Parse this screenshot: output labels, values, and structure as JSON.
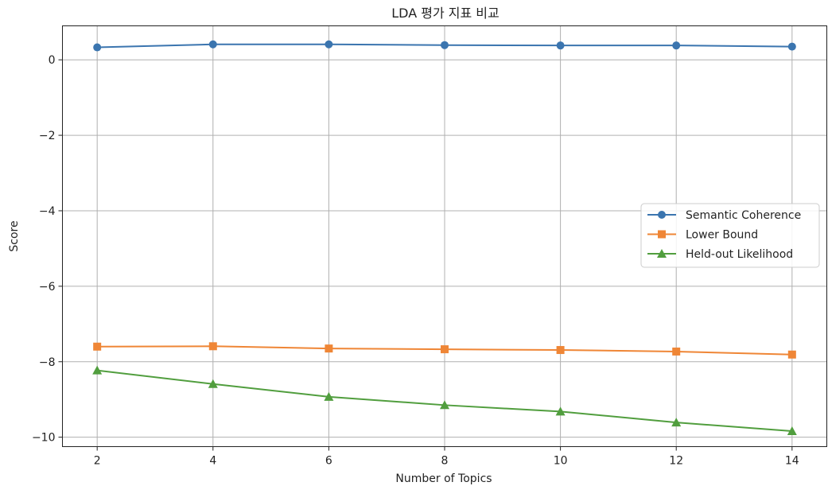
{
  "chart_data": {
    "type": "line",
    "title": "LDA 평가 지표 비교",
    "xlabel": "Number of Topics",
    "ylabel": "Score",
    "x": [
      2,
      4,
      6,
      8,
      10,
      12,
      14
    ],
    "xticks": [
      2,
      4,
      6,
      8,
      10,
      12,
      14
    ],
    "yticks": [
      0,
      -2,
      -4,
      -6,
      -8,
      -10
    ],
    "xlim": [
      1.4,
      14.6
    ],
    "ylim": [
      -10.25,
      0.9
    ],
    "grid": true,
    "legend_position": "center-right",
    "series": [
      {
        "name": "Semantic Coherence",
        "color": "#3b75af",
        "marker": "circle",
        "values": [
          0.33,
          0.41,
          0.41,
          0.39,
          0.38,
          0.38,
          0.35
        ]
      },
      {
        "name": "Lower Bound",
        "color": "#ef8636",
        "marker": "square",
        "values": [
          -7.6,
          -7.59,
          -7.65,
          -7.67,
          -7.69,
          -7.73,
          -7.81
        ]
      },
      {
        "name": "Held-out Likelihood",
        "color": "#519e3e",
        "marker": "triangle",
        "values": [
          -8.23,
          -8.59,
          -8.93,
          -9.15,
          -9.32,
          -9.61,
          -9.84
        ]
      }
    ]
  }
}
